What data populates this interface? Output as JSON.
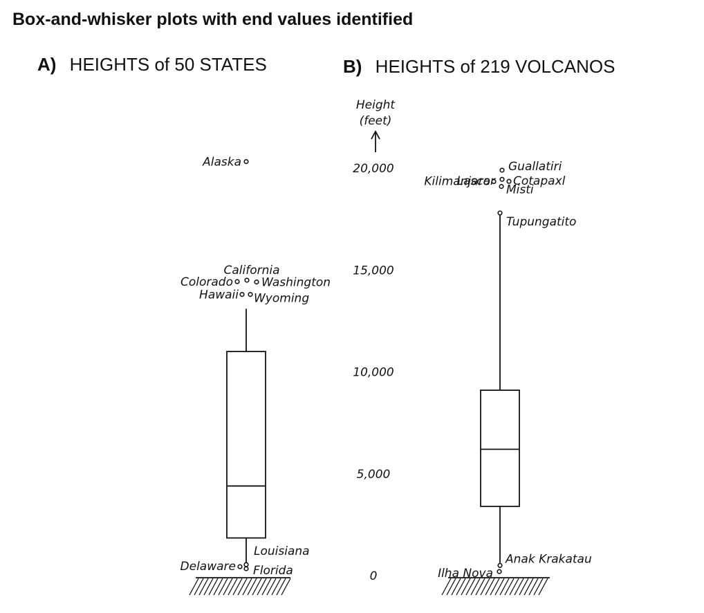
{
  "title": "Box-and-whisker plots with end values identified",
  "chart_data": {
    "type": "box",
    "ylabel": "Height (feet)",
    "ylabel_lines": [
      "Height",
      "(feet)"
    ],
    "ylim": [
      0,
      20000
    ],
    "yticks": [
      {
        "value": 0,
        "label": "0"
      },
      {
        "value": 5000,
        "label": "5,000"
      },
      {
        "value": 10000,
        "label": "10,000"
      },
      {
        "value": 15000,
        "label": "15,000"
      },
      {
        "value": 20000,
        "label": "20,000"
      }
    ],
    "panels": [
      {
        "letter": "A)",
        "title": "HEIGHTS of 50 STATES",
        "box": {
          "whisker_low": 540,
          "q1": 1850,
          "median": 4400,
          "q3": 11000,
          "whisker_high": 13100
        },
        "points": [
          {
            "label": "Alaska",
            "value": 20320
          },
          {
            "label": "California",
            "value": 14500
          },
          {
            "label": "Colorado",
            "value": 14430
          },
          {
            "label": "Washington",
            "value": 14410
          },
          {
            "label": "Hawaii",
            "value": 13800
          },
          {
            "label": "Wyoming",
            "value": 13800
          },
          {
            "label": "Louisiana",
            "value": 540
          },
          {
            "label": "Delaware",
            "value": 440
          },
          {
            "label": "Florida",
            "value": 340
          }
        ]
      },
      {
        "letter": "B)",
        "title": "HEIGHTS of 219 VOLCANOS",
        "box": {
          "whisker_low": 620,
          "q1": 3400,
          "median": 6200,
          "q3": 9100,
          "whisker_high": 17800
        },
        "points": [
          {
            "label": "Guallatiri",
            "value": 19900
          },
          {
            "label": "Lascar",
            "value": 19450
          },
          {
            "label": "Cotapaxl",
            "value": 19350
          },
          {
            "label": "Kilimanjaro",
            "value": 19340
          },
          {
            "label": "Misti",
            "value": 19100
          },
          {
            "label": "Tupungatito",
            "value": 17800
          },
          {
            "label": "Anak Krakatau",
            "value": 500
          },
          {
            "label": "Ilha Nova",
            "value": 200
          }
        ]
      }
    ]
  }
}
